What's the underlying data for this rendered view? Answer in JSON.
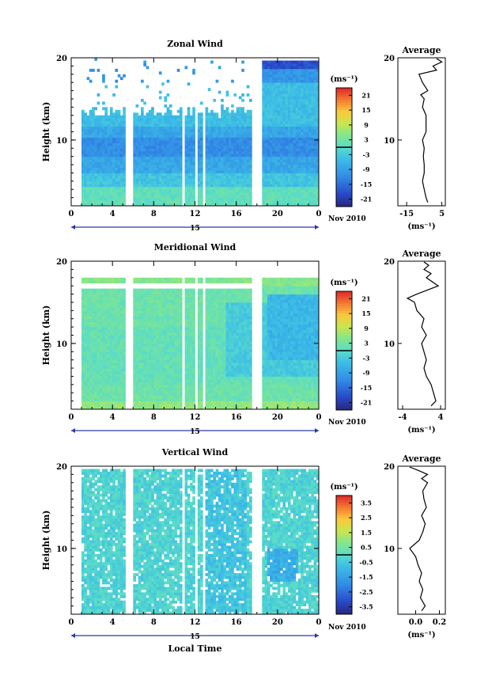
{
  "chart_data": [
    {
      "type": "heatmap",
      "title": "Zonal Wind",
      "ylabel": "Height (km)",
      "y_ticks": [
        "10",
        "20"
      ],
      "ylim": [
        2,
        20
      ],
      "x_ticks": [
        "0",
        "4",
        "8",
        "12",
        "16",
        "20",
        "0"
      ],
      "xlim": [
        0,
        24
      ],
      "date_label": "15",
      "month_label": "Nov 2010",
      "colorbar": {
        "unit": "(ms⁻¹)",
        "ticks": [
          "21",
          "15",
          "9",
          "3",
          "-3",
          "-9",
          "-15",
          "-21"
        ],
        "range": [
          -24,
          24
        ]
      },
      "data_gaps": [
        [
          0.6,
          0.9
        ],
        [
          5.3,
          5.9
        ],
        [
          10.8,
          11.1
        ],
        [
          12.0,
          12.3
        ],
        [
          12.8,
          13.1
        ],
        [
          17.6,
          18.5
        ]
      ],
      "average": {
        "title": "Average",
        "xlabel": "(ms⁻¹)",
        "x_ticks": [
          "-15",
          "5"
        ],
        "xlim": [
          -20,
          7
        ],
        "y_ticks": [
          "10",
          "20"
        ],
        "ylim": [
          2,
          20
        ],
        "profile": [
          [
            2.4,
            -3
          ],
          [
            3,
            -4
          ],
          [
            4,
            -5
          ],
          [
            5,
            -6
          ],
          [
            6,
            -5
          ],
          [
            7,
            -5
          ],
          [
            8,
            -5.5
          ],
          [
            9,
            -5
          ],
          [
            10,
            -6
          ],
          [
            11,
            -4
          ],
          [
            12,
            -4
          ],
          [
            13,
            -4
          ],
          [
            14,
            -6
          ],
          [
            15,
            -5
          ],
          [
            15.5,
            -7
          ],
          [
            16,
            -3
          ],
          [
            17,
            -6
          ],
          [
            18,
            -8
          ],
          [
            18.5,
            2
          ],
          [
            19,
            0
          ],
          [
            19.5,
            5
          ],
          [
            19.9,
            2
          ]
        ]
      }
    },
    {
      "type": "heatmap",
      "title": "Meridional Wind",
      "ylabel": "Height (km)",
      "y_ticks": [
        "10",
        "20"
      ],
      "ylim": [
        2,
        20
      ],
      "x_ticks": [
        "0",
        "4",
        "8",
        "12",
        "16",
        "20",
        "0"
      ],
      "xlim": [
        0,
        24
      ],
      "date_label": "15",
      "month_label": "Nov 2010",
      "colorbar": {
        "unit": "(ms⁻¹)",
        "ticks": [
          "21",
          "15",
          "9",
          "3",
          "-3",
          "-9",
          "-15",
          "-21"
        ],
        "range": [
          -24,
          24
        ]
      },
      "data_gaps": [
        [
          0.6,
          0.9
        ],
        [
          5.3,
          5.9
        ],
        [
          10.8,
          11.1
        ],
        [
          12.0,
          12.3
        ],
        [
          12.8,
          13.1
        ],
        [
          17.6,
          18.5
        ]
      ],
      "average": {
        "title": "Average",
        "xlabel": "(ms⁻¹)",
        "x_ticks": [
          "-4",
          "4"
        ],
        "xlim": [
          -5,
          5
        ],
        "y_ticks": [
          "10",
          "20"
        ],
        "ylim": [
          2,
          20
        ],
        "profile": [
          [
            2.4,
            2
          ],
          [
            3,
            3
          ],
          [
            4,
            2.5
          ],
          [
            5,
            2
          ],
          [
            6,
            1
          ],
          [
            7,
            0.5
          ],
          [
            8,
            1
          ],
          [
            9,
            0.5
          ],
          [
            10,
            0
          ],
          [
            11,
            1
          ],
          [
            12,
            0
          ],
          [
            13,
            0.5
          ],
          [
            14,
            -1
          ],
          [
            15,
            -1.5
          ],
          [
            15.5,
            -3
          ],
          [
            16,
            -1
          ],
          [
            17,
            3.5
          ],
          [
            18,
            1
          ],
          [
            18.5,
            2
          ],
          [
            19,
            0.5
          ],
          [
            19.5,
            1.5
          ],
          [
            19.9,
            0.5
          ]
        ]
      }
    },
    {
      "type": "heatmap",
      "title": "Vertical Wind",
      "ylabel": "Height (km)",
      "y_ticks": [
        "10",
        "20"
      ],
      "ylim": [
        2,
        20
      ],
      "x_ticks": [
        "0",
        "4",
        "8",
        "12",
        "16",
        "20",
        "0"
      ],
      "xlim": [
        0,
        24
      ],
      "xlabel": "Local Time",
      "date_label": "15",
      "month_label": "Nov 2010",
      "colorbar": {
        "unit": "(ms⁻¹)",
        "ticks": [
          "3.5",
          "2.5",
          "1.5",
          "0.5",
          "-0.5",
          "-1.5",
          "-2.5",
          "-3.5"
        ],
        "range": [
          -4,
          4
        ]
      },
      "data_gaps": [
        [
          0.6,
          0.9
        ],
        [
          5.3,
          5.9
        ],
        [
          10.8,
          11.1
        ],
        [
          12.0,
          12.3
        ],
        [
          12.8,
          13.1
        ],
        [
          17.6,
          18.5
        ]
      ],
      "average": {
        "title": "Average",
        "xlabel": "(ms⁻¹)",
        "x_ticks": [
          "0.0",
          "0.2"
        ],
        "xlim": [
          -0.15,
          0.25
        ],
        "y_ticks": [
          "10",
          "20"
        ],
        "ylim": [
          2,
          20
        ],
        "profile": [
          [
            2.4,
            0.05
          ],
          [
            3,
            0.08
          ],
          [
            4,
            0.04
          ],
          [
            5,
            0.06
          ],
          [
            6,
            0.03
          ],
          [
            7,
            0.05
          ],
          [
            8,
            0.02
          ],
          [
            9,
            0.0
          ],
          [
            10,
            -0.05
          ],
          [
            11,
            0.03
          ],
          [
            12,
            0.06
          ],
          [
            13,
            0.08
          ],
          [
            14,
            0.05
          ],
          [
            15,
            0.09
          ],
          [
            16,
            0.07
          ],
          [
            17,
            0.06
          ],
          [
            18,
            0.1
          ],
          [
            18.5,
            0.05
          ],
          [
            19,
            0.1
          ],
          [
            19.5,
            0.02
          ],
          [
            19.9,
            -0.05
          ]
        ]
      }
    }
  ]
}
